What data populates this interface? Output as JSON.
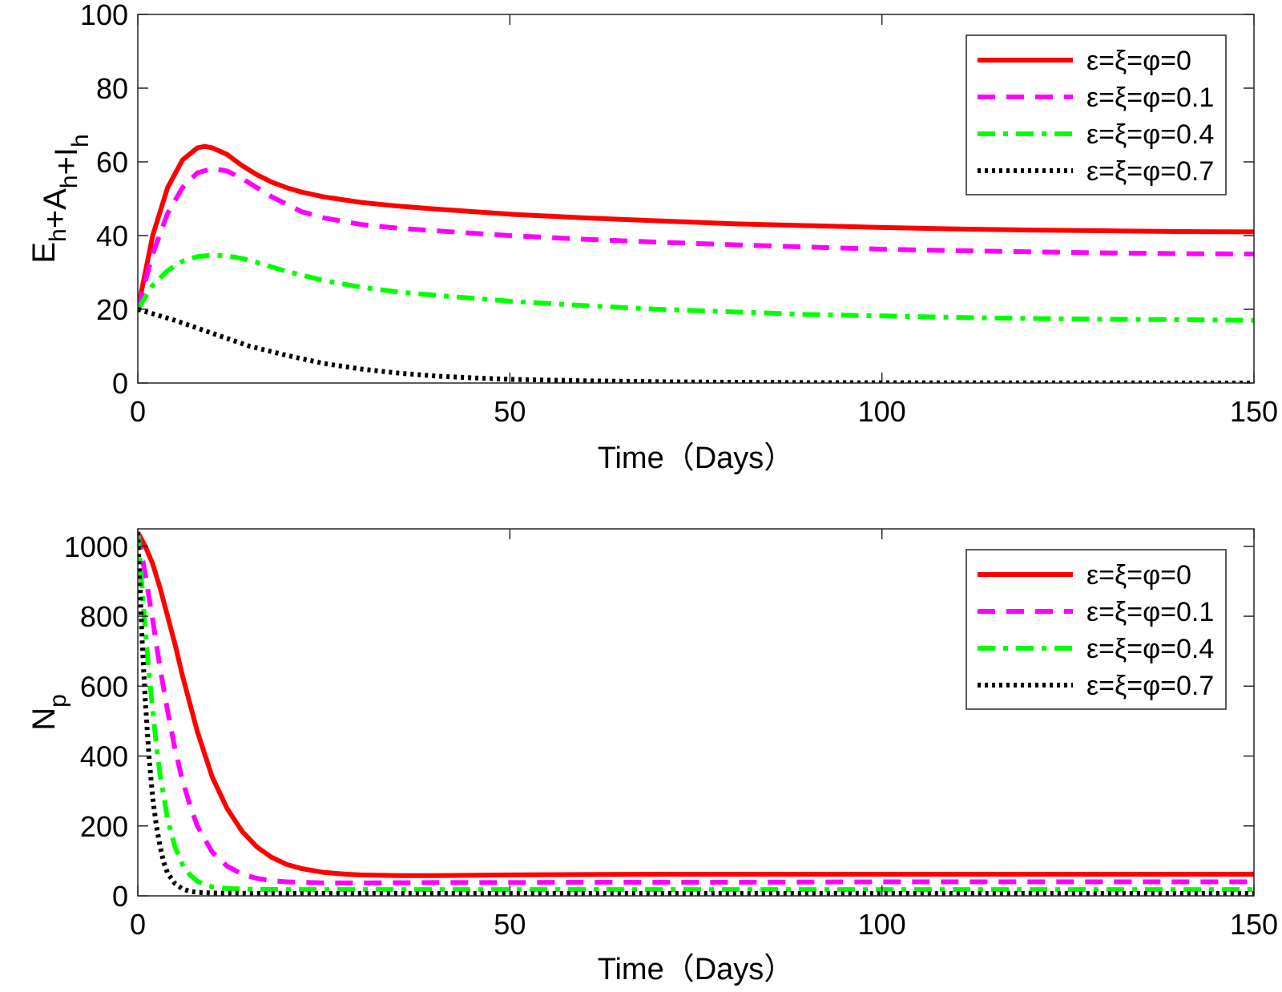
{
  "chart_data": [
    {
      "type": "line",
      "xlabel": "Time（Days）",
      "ylabel_parts": [
        {
          "text": "E",
          "sub": "h"
        },
        {
          "text": "+A",
          "sub": "h"
        },
        {
          "text": "+I",
          "sub": "h"
        }
      ],
      "xlim": [
        0,
        150
      ],
      "ylim": [
        0,
        100
      ],
      "xticks": [
        0,
        50,
        100,
        150
      ],
      "yticks": [
        0,
        20,
        40,
        60,
        80,
        100
      ],
      "xtick_labels": [
        "0",
        "50",
        "100",
        "150"
      ],
      "ytick_labels": [
        "0",
        "20",
        "40",
        "60",
        "80",
        "100"
      ],
      "grid": false,
      "legend_position": "top-right",
      "series": [
        {
          "name": "ε=ξ=φ=0",
          "color": "#ff0000",
          "dash": "solid",
          "x": [
            0,
            2,
            4,
            6,
            8,
            9,
            10,
            12,
            14,
            16,
            18,
            20,
            22,
            25,
            30,
            35,
            40,
            50,
            60,
            70,
            80,
            90,
            100,
            110,
            120,
            130,
            140,
            150
          ],
          "y": [
            20,
            40,
            53,
            60.5,
            63.8,
            64.2,
            63.8,
            62,
            59,
            56.5,
            54.5,
            53,
            51.8,
            50.5,
            49,
            48,
            47.2,
            45.8,
            44.8,
            44,
            43.2,
            42.7,
            42.2,
            41.8,
            41.5,
            41.3,
            41.1,
            41
          ]
        },
        {
          "name": "ε=ξ=φ=0.1",
          "color": "#ff00ff",
          "dash": "dashed",
          "x": [
            0,
            2,
            4,
            6,
            8,
            10,
            12,
            14,
            16,
            18,
            20,
            22,
            25,
            30,
            35,
            40,
            50,
            60,
            70,
            80,
            90,
            100,
            110,
            120,
            130,
            140,
            150
          ],
          "y": [
            20,
            35,
            46,
            53,
            57,
            58.2,
            57.5,
            55.5,
            53,
            50.5,
            48.5,
            46.5,
            44.8,
            43,
            42,
            41.3,
            40,
            39,
            38.2,
            37.5,
            36.9,
            36.3,
            35.9,
            35.6,
            35.3,
            35.1,
            35
          ]
        },
        {
          "name": "ε=ξ=φ=0.4",
          "color": "#00ff00",
          "dash": "dashdot",
          "x": [
            0,
            2,
            4,
            6,
            8,
            10,
            12,
            14,
            16,
            18,
            20,
            25,
            30,
            35,
            40,
            50,
            60,
            70,
            80,
            90,
            100,
            110,
            120,
            130,
            140,
            150
          ],
          "y": [
            20,
            26.5,
            30.5,
            33,
            34.3,
            34.7,
            34.5,
            33.8,
            32.7,
            31.5,
            30.3,
            27.8,
            26,
            24.7,
            23.8,
            22.2,
            21,
            20,
            19.3,
            18.6,
            18.2,
            17.8,
            17.5,
            17.3,
            17.2,
            17
          ]
        },
        {
          "name": "ε=ξ=φ=0.7",
          "color": "#000000",
          "dash": "dotted",
          "x": [
            0,
            5,
            10,
            15,
            20,
            25,
            30,
            35,
            40,
            45,
            50,
            60,
            70,
            80,
            90,
            100,
            110,
            120,
            130,
            140,
            150
          ],
          "y": [
            20,
            17,
            13.5,
            10,
            7.5,
            5.3,
            3.8,
            2.7,
            1.9,
            1.4,
            1,
            0.6,
            0.35,
            0.2,
            0.12,
            0.08,
            0.05,
            0.03,
            0.02,
            0.01,
            0.01
          ]
        }
      ]
    },
    {
      "type": "line",
      "xlabel": "Time（Days）",
      "ylabel_parts": [
        {
          "text": "N",
          "sub": "p"
        }
      ],
      "xlim": [
        0,
        150
      ],
      "ylim": [
        0,
        1050
      ],
      "xticks": [
        0,
        50,
        100,
        150
      ],
      "yticks": [
        0,
        200,
        400,
        600,
        800,
        1000
      ],
      "xtick_labels": [
        "0",
        "50",
        "100",
        "150"
      ],
      "ytick_labels": [
        "0",
        "200",
        "400",
        "600",
        "800",
        "1000"
      ],
      "grid": false,
      "legend_position": "top-right",
      "series": [
        {
          "name": "ε=ξ=φ=0",
          "color": "#ff0000",
          "dash": "solid",
          "x": [
            0,
            1,
            2,
            3,
            4,
            5,
            6,
            8,
            10,
            12,
            14,
            16,
            18,
            20,
            22,
            25,
            28,
            30,
            35,
            40,
            50,
            60,
            70,
            80,
            100,
            120,
            150
          ],
          "y": [
            1040,
            1000,
            950,
            880,
            800,
            720,
            630,
            470,
            340,
            250,
            185,
            140,
            110,
            90,
            78,
            67,
            62,
            60,
            58,
            58,
            60,
            61,
            62,
            62,
            62,
            62,
            62
          ]
        },
        {
          "name": "ε=ξ=φ=0.1",
          "color": "#ff00ff",
          "dash": "dashed",
          "x": [
            0,
            1,
            2,
            3,
            4,
            5,
            6,
            7,
            8,
            10,
            12,
            14,
            16,
            18,
            20,
            25,
            30,
            40,
            50,
            60,
            80,
            100,
            150
          ],
          "y": [
            1040,
            920,
            790,
            650,
            530,
            420,
            330,
            260,
            200,
            125,
            85,
            62,
            50,
            43,
            40,
            37,
            37,
            38,
            38,
            39,
            39,
            40,
            40
          ]
        },
        {
          "name": "ε=ξ=φ=0.4",
          "color": "#00ff00",
          "dash": "dashdot",
          "x": [
            0,
            0.5,
            1,
            1.5,
            2,
            2.5,
            3,
            4,
            5,
            6,
            7,
            8,
            9,
            10,
            12,
            15,
            20,
            30,
            50,
            100,
            150
          ],
          "y": [
            1040,
            900,
            760,
            640,
            530,
            430,
            345,
            220,
            140,
            90,
            60,
            42,
            32,
            26,
            21,
            19,
            18,
            18,
            18,
            18,
            18
          ]
        },
        {
          "name": "ε=ξ=φ=0.7",
          "color": "#000000",
          "dash": "dotted",
          "x": [
            0,
            0.3,
            0.6,
            1,
            1.5,
            2,
            2.5,
            3,
            3.5,
            4,
            5,
            6,
            7,
            8,
            10,
            15,
            20,
            50,
            100,
            150
          ],
          "y": [
            1040,
            880,
            720,
            560,
            400,
            280,
            200,
            140,
            95,
            65,
            35,
            20,
            13,
            10,
            8,
            7,
            7,
            7,
            7,
            7
          ]
        }
      ]
    }
  ]
}
